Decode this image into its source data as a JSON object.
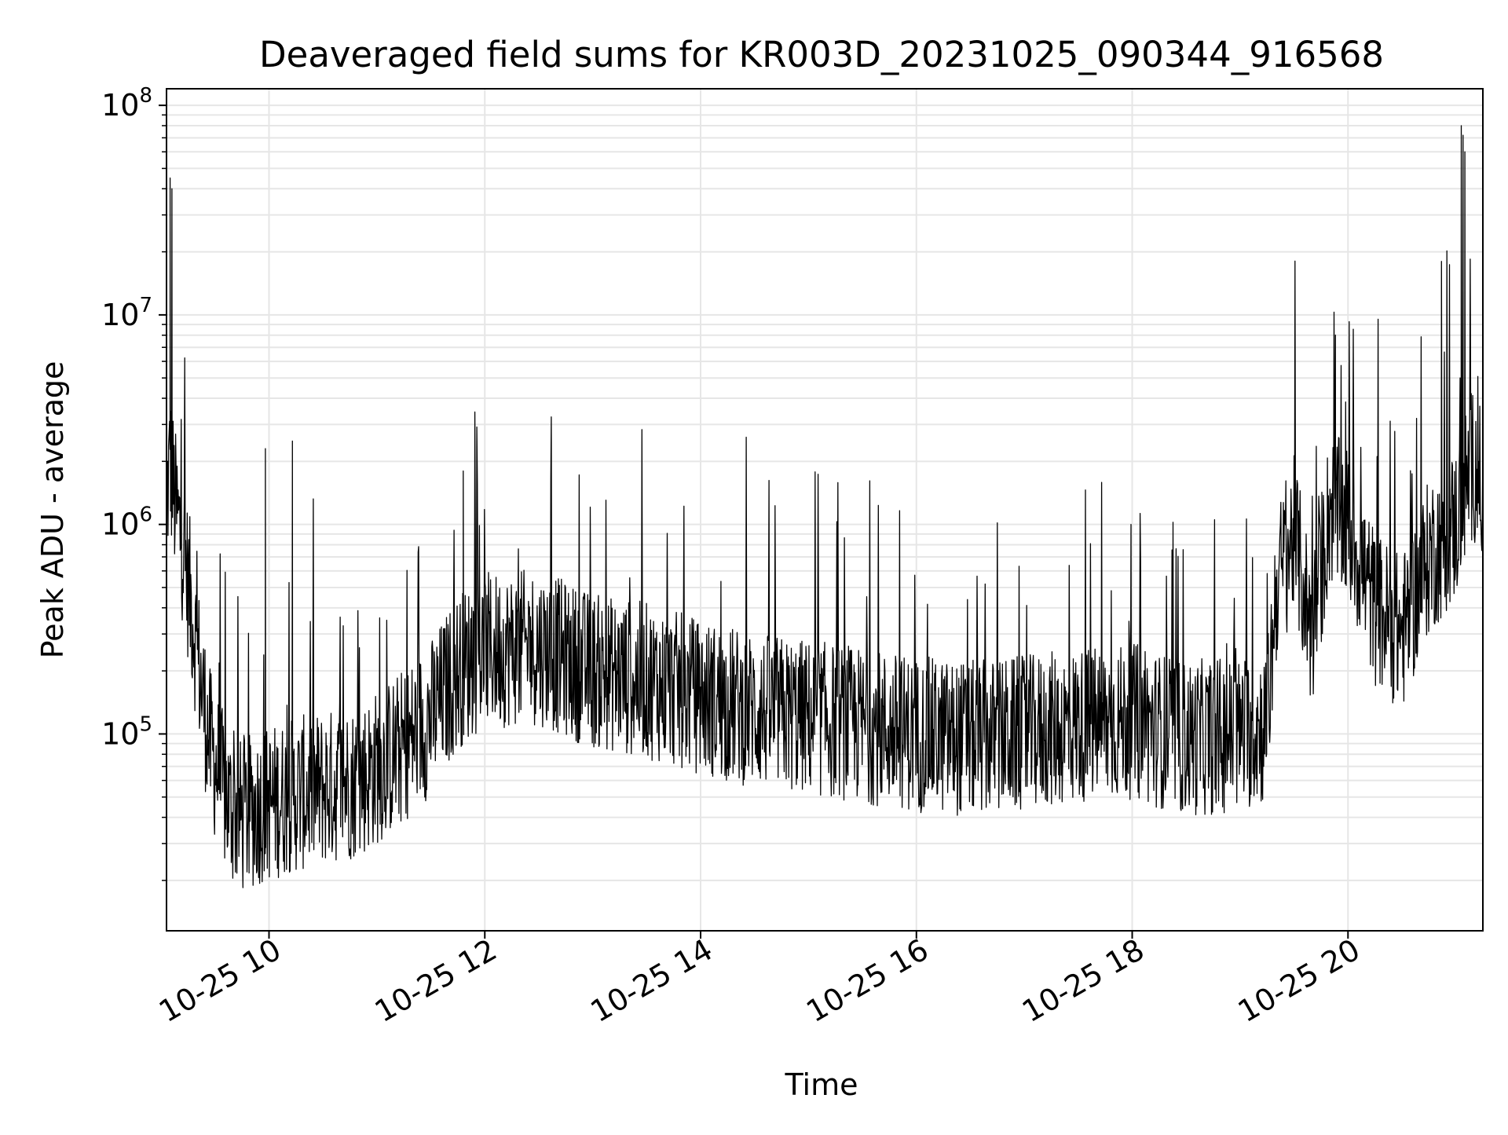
{
  "chart_data": {
    "type": "line",
    "title": "Deaveraged field sums for KR003D_20231025_090344_916568",
    "xlabel": "Time",
    "ylabel": "Peak ADU - average",
    "y_scale": "log",
    "grid": true,
    "line_color": "#000000",
    "grid_color": "#e6e6e6",
    "x_range": [
      "10-25 09:03",
      "10-25 21:15"
    ],
    "ylim": [
      11500,
      120000000
    ],
    "x_ticks": [
      "10-25 10",
      "10-25 12",
      "10-25 14",
      "10-25 16",
      "10-25 18",
      "10-25 20"
    ],
    "y_ticks": [
      {
        "value": 100000,
        "base": "10",
        "exp": "5"
      },
      {
        "value": 1000000,
        "base": "10",
        "exp": "6"
      },
      {
        "value": 10000000,
        "base": "10",
        "exp": "7"
      },
      {
        "value": 100000000,
        "base": "10",
        "exp": "8"
      }
    ],
    "series": [
      {
        "x": [
          "10-25 09:03",
          "10-25 09:05",
          "10-25 09:08",
          "10-25 09:12",
          "10-25 09:17",
          "10-25 09:22",
          "10-25 09:27",
          "10-25 09:33",
          "10-25 09:38",
          "10-25 09:45",
          "10-25 09:55",
          "10-25 10:10",
          "10-25 10:30",
          "10-25 10:50",
          "10-25 11:10",
          "10-25 11:30",
          "10-25 11:45",
          "10-25 12:00",
          "10-25 12:30",
          "10-25 13:00",
          "10-25 13:30",
          "10-25 14:00",
          "10-25 14:30",
          "10-25 15:00",
          "10-25 15:30",
          "10-25 16:00",
          "10-25 16:30",
          "10-25 17:00",
          "10-25 17:30",
          "10-25 18:00",
          "10-25 18:30",
          "10-25 19:00",
          "10-25 19:15",
          "10-25 19:20",
          "10-25 19:30",
          "10-25 19:40",
          "10-25 19:50",
          "10-25 20:00",
          "10-25 20:15",
          "10-25 20:30",
          "10-25 20:45",
          "10-25 21:00",
          "10-25 21:05",
          "10-25 21:10",
          "10-25 21:15"
        ],
        "y": [
          1300000,
          2000000,
          1200000,
          800000,
          400000,
          180000,
          90000,
          60000,
          45000,
          40000,
          45000,
          50000,
          55000,
          60000,
          80000,
          120000,
          200000,
          250000,
          260000,
          200000,
          180000,
          150000,
          130000,
          120000,
          110000,
          100000,
          95000,
          100000,
          110000,
          115000,
          95000,
          100000,
          110000,
          500000,
          900000,
          300000,
          1200000,
          1000000,
          400000,
          300000,
          700000,
          1000000,
          1500000,
          2000000,
          1400000
        ]
      }
    ],
    "peaks": [
      {
        "x": "10-25 09:05",
        "y": 45000000
      },
      {
        "x": "10-25 09:06",
        "y": 40000000
      },
      {
        "x": "10-25 09:58",
        "y": 2300000
      },
      {
        "x": "10-25 10:13",
        "y": 2500000
      },
      {
        "x": "10-25 11:48",
        "y": 1800000
      },
      {
        "x": "10-25 19:53",
        "y": 8000000
      },
      {
        "x": "10-25 20:52",
        "y": 18000000
      },
      {
        "x": "10-25 21:03",
        "y": 80000000
      },
      {
        "x": "10-25 21:04",
        "y": 72000000
      },
      {
        "x": "10-25 21:05",
        "y": 60000000
      }
    ]
  }
}
